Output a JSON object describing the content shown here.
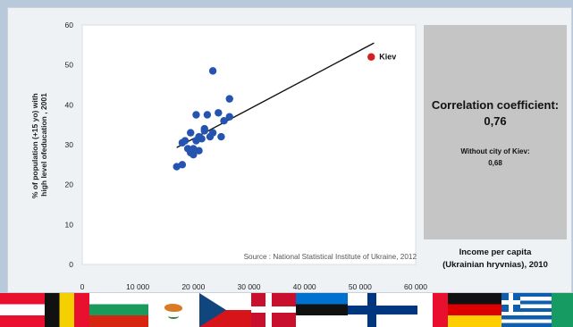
{
  "chart_data": {
    "type": "scatter",
    "title": "",
    "ylabel": "% of population (+15 yo) with high level ofeducation , 2001",
    "xlabel": "Income per capita (Ukrainian hryvnias), 2010",
    "xlim": [
      0,
      60000
    ],
    "ylim": [
      0,
      60
    ],
    "xticks": [
      "0",
      "10 000",
      "20 000",
      "30 000",
      "40 000",
      "50 000",
      "60 000"
    ],
    "yticks": [
      "0",
      "10",
      "20",
      "30",
      "40",
      "50",
      "60"
    ],
    "grid": false,
    "source": "Source : National Statistical Institute of Ukraine, 2012",
    "colors": {
      "regions": "#2554b0",
      "kiev": "#d42020",
      "trend": "#111111"
    },
    "trend_line": {
      "x": [
        17000,
        52500
      ],
      "y": [
        29.3,
        55.5
      ]
    },
    "points": [
      {
        "x": 17000,
        "y": 24.5
      },
      {
        "x": 18000,
        "y": 25
      },
      {
        "x": 18000,
        "y": 30.5
      },
      {
        "x": 18500,
        "y": 31
      },
      {
        "x": 19000,
        "y": 29
      },
      {
        "x": 19500,
        "y": 28
      },
      {
        "x": 20000,
        "y": 27.5
      },
      {
        "x": 20000,
        "y": 29
      },
      {
        "x": 19500,
        "y": 33
      },
      {
        "x": 20500,
        "y": 31
      },
      {
        "x": 20500,
        "y": 37.5
      },
      {
        "x": 21000,
        "y": 28.5
      },
      {
        "x": 21000,
        "y": 32
      },
      {
        "x": 21500,
        "y": 31.5
      },
      {
        "x": 22000,
        "y": 33.5
      },
      {
        "x": 22000,
        "y": 34
      },
      {
        "x": 22500,
        "y": 37.5
      },
      {
        "x": 23000,
        "y": 32
      },
      {
        "x": 23500,
        "y": 33
      },
      {
        "x": 23500,
        "y": 48.5
      },
      {
        "x": 24500,
        "y": 38
      },
      {
        "x": 25000,
        "y": 32
      },
      {
        "x": 25500,
        "y": 36
      },
      {
        "x": 26500,
        "y": 37
      },
      {
        "x": 26500,
        "y": 41.5
      }
    ],
    "highlight": {
      "label": "Kiev",
      "x": 52000,
      "y": 52
    }
  },
  "info_panel": {
    "title_line1": "Correlation coefficient:",
    "title_line2": "0,76",
    "note_line1": "Without city of Kiev:",
    "note_line2": "0,68"
  },
  "x_axis_caption": {
    "line1": "Income per capita",
    "line2": "(Ukrainian hryvnias), 2010"
  },
  "flags": [
    "austria-flag",
    "belgium-flag",
    "bulgaria-flag",
    "cyprus-flag",
    "czech-republic-flag",
    "denmark-flag",
    "estonia-flag",
    "finland-flag",
    "france-flag",
    "germany-flag",
    "greece-flag",
    "ireland-flag"
  ]
}
